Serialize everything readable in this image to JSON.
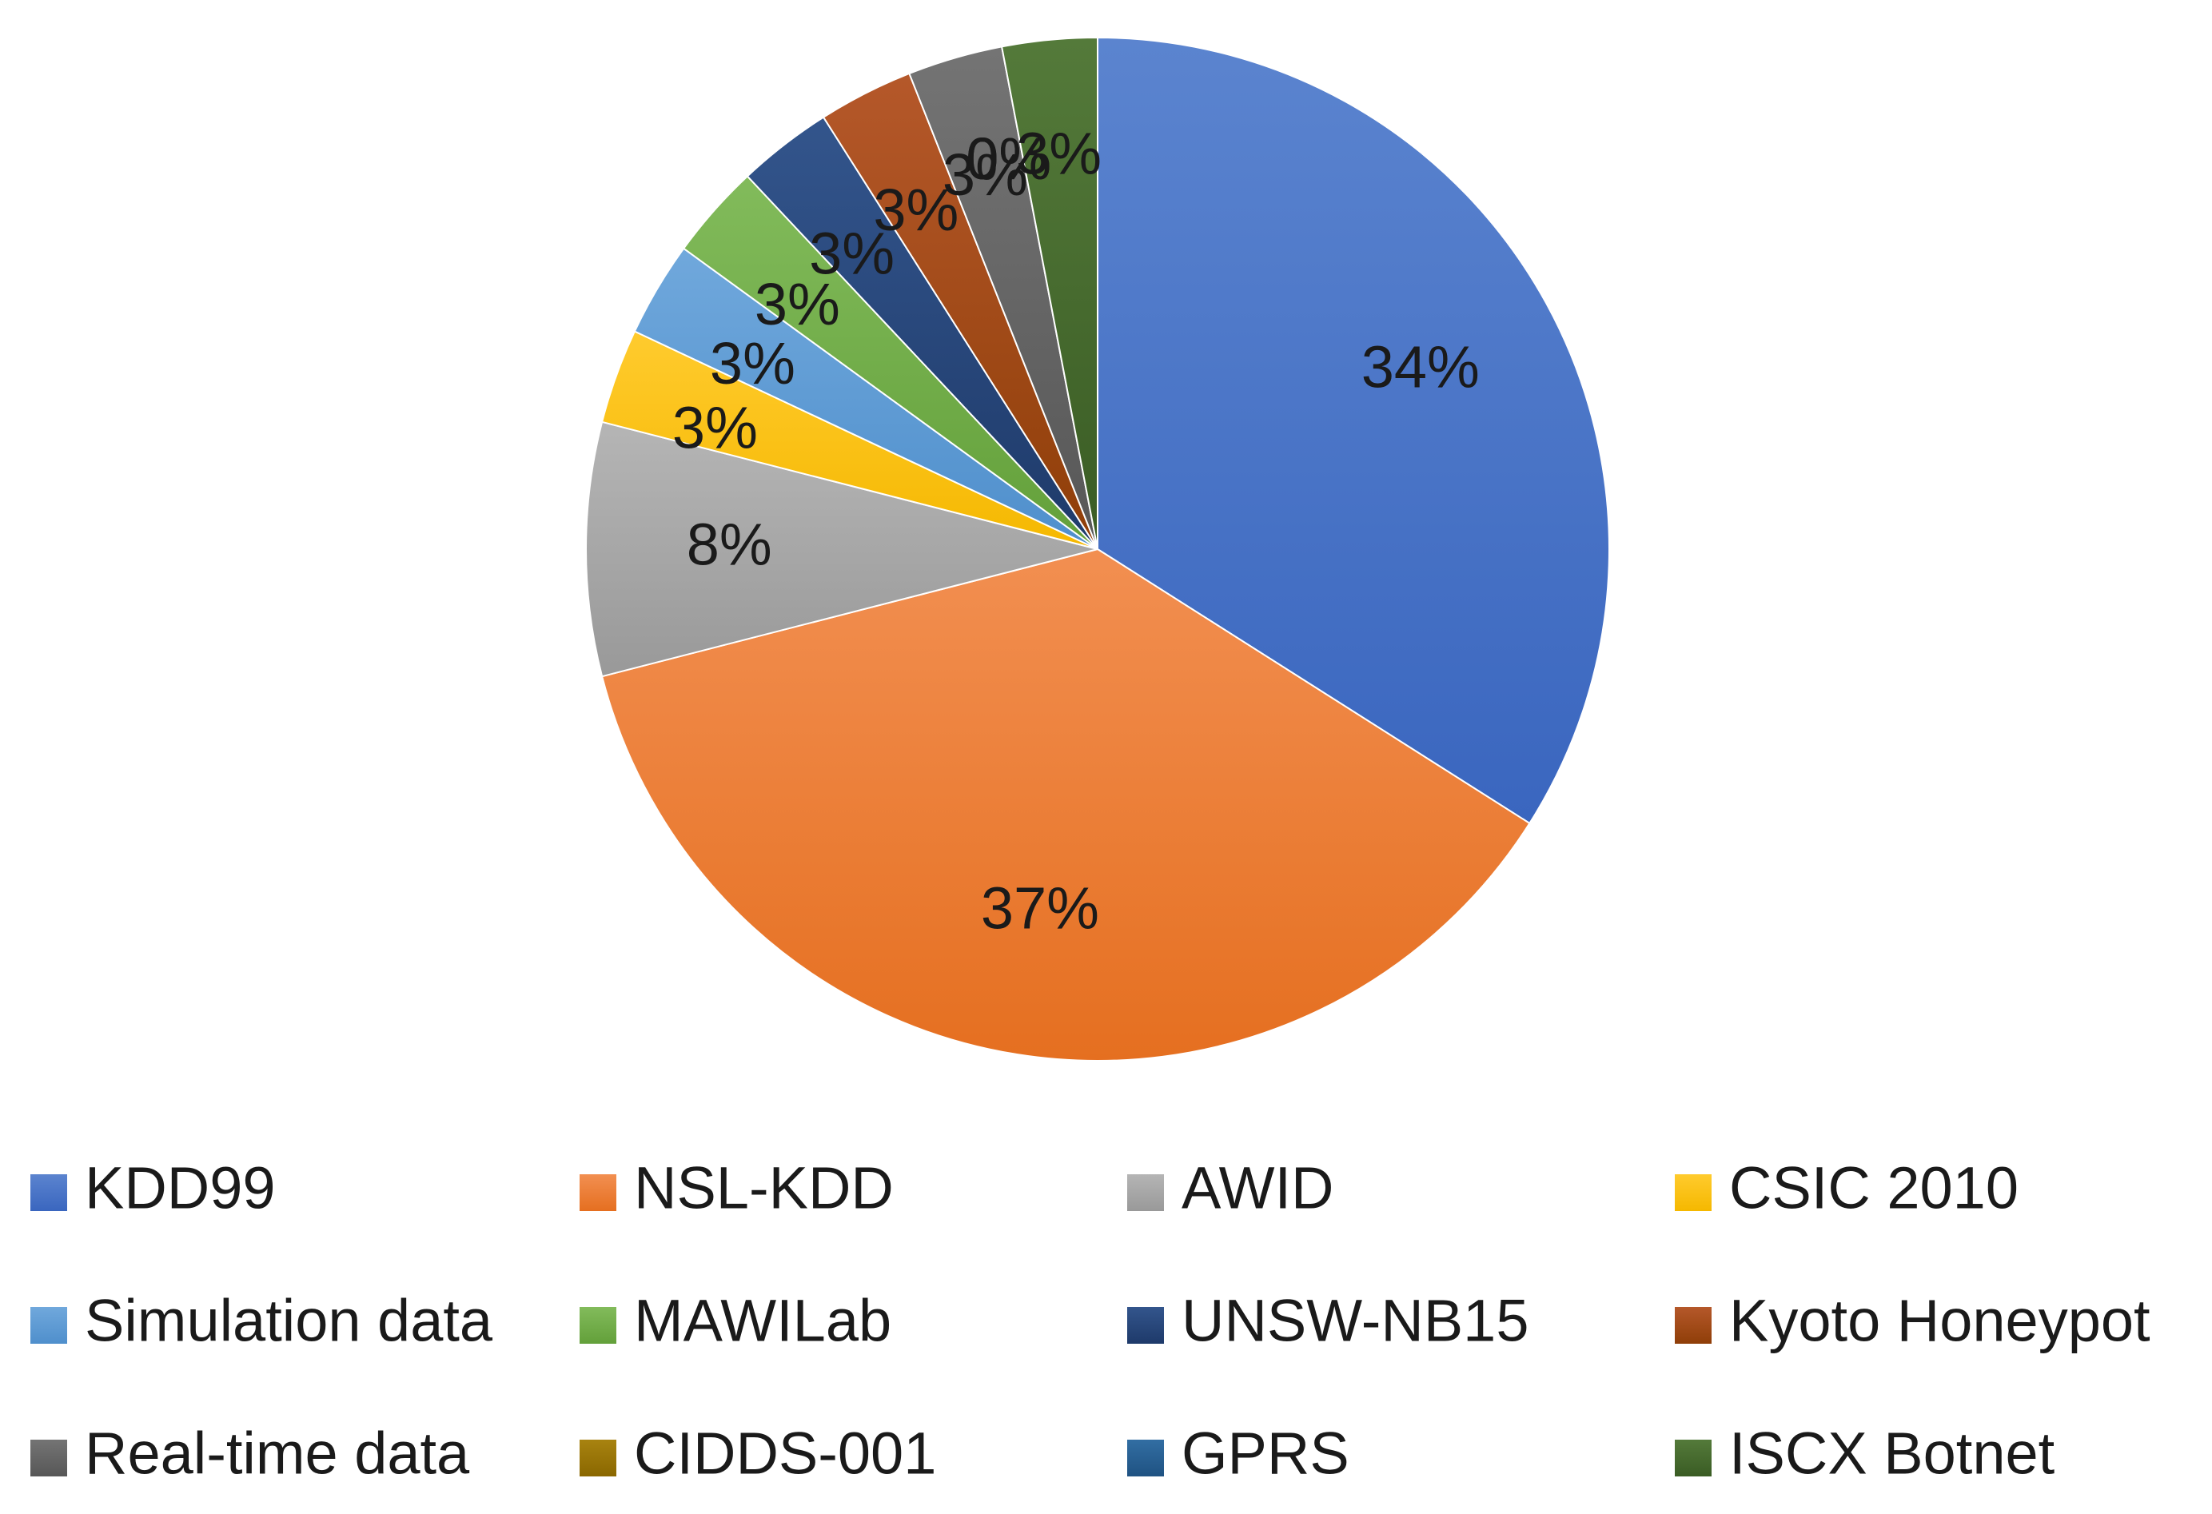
{
  "chart_data": {
    "type": "pie",
    "title": "",
    "start_angle_deg": 0,
    "direction": "clockwise",
    "slices": [
      {
        "name": "KDD99",
        "value": 34,
        "label": "34%",
        "color": "#4472C4",
        "color_dark": "#3a66bf",
        "color_light": "#5b84cf"
      },
      {
        "name": "NSL-KDD",
        "value": 37,
        "label": "37%",
        "color": "#ED7D31",
        "color_dark": "#e56f20",
        "color_light": "#f28f51"
      },
      {
        "name": "AWID",
        "value": 8,
        "label": "8%",
        "color": "#A5A5A5",
        "color_dark": "#999999",
        "color_light": "#b5b5b5"
      },
      {
        "name": "CSIC 2010",
        "value": 3,
        "label": "3%",
        "color": "#FFC000",
        "color_dark": "#f5b800",
        "color_light": "#ffcb2e"
      },
      {
        "name": "Simulation data",
        "value": 3,
        "label": "3%",
        "color": "#5B9BD5",
        "color_dark": "#4f8fcc",
        "color_light": "#70a8dc"
      },
      {
        "name": "MAWILab",
        "value": 3,
        "label": "3%",
        "color": "#70AD47",
        "color_dark": "#63a03a",
        "color_light": "#82bb5b"
      },
      {
        "name": "UNSW-NB15",
        "value": 3,
        "label": "3%",
        "color": "#264478",
        "color_dark": "#1e3a6a",
        "color_light": "#33558c"
      },
      {
        "name": "Kyoto Honeypot",
        "value": 3,
        "label": "3%",
        "color": "#9E480E",
        "color_dark": "#8f3e08",
        "color_light": "#b5582a"
      },
      {
        "name": "Real-time data",
        "value": 3,
        "label": "3%",
        "color": "#636363",
        "color_dark": "#575757",
        "color_light": "#747474"
      },
      {
        "name": "CIDDS-001",
        "value": 0,
        "label": "0%",
        "color": "#997300",
        "color_dark": "#8a6700",
        "color_light": "#a88310"
      },
      {
        "name": "GPRS",
        "value": 0,
        "label": "0%",
        "color": "#255E91",
        "color_dark": "#1f5282",
        "color_light": "#326ea3"
      },
      {
        "name": "ISCX Botnet",
        "value": 3,
        "label": "3%",
        "color": "#43682B",
        "color_dark": "#3a5c24",
        "color_light": "#547a3a"
      }
    ],
    "legend": {
      "placement": "bottom",
      "columns": 4
    }
  }
}
